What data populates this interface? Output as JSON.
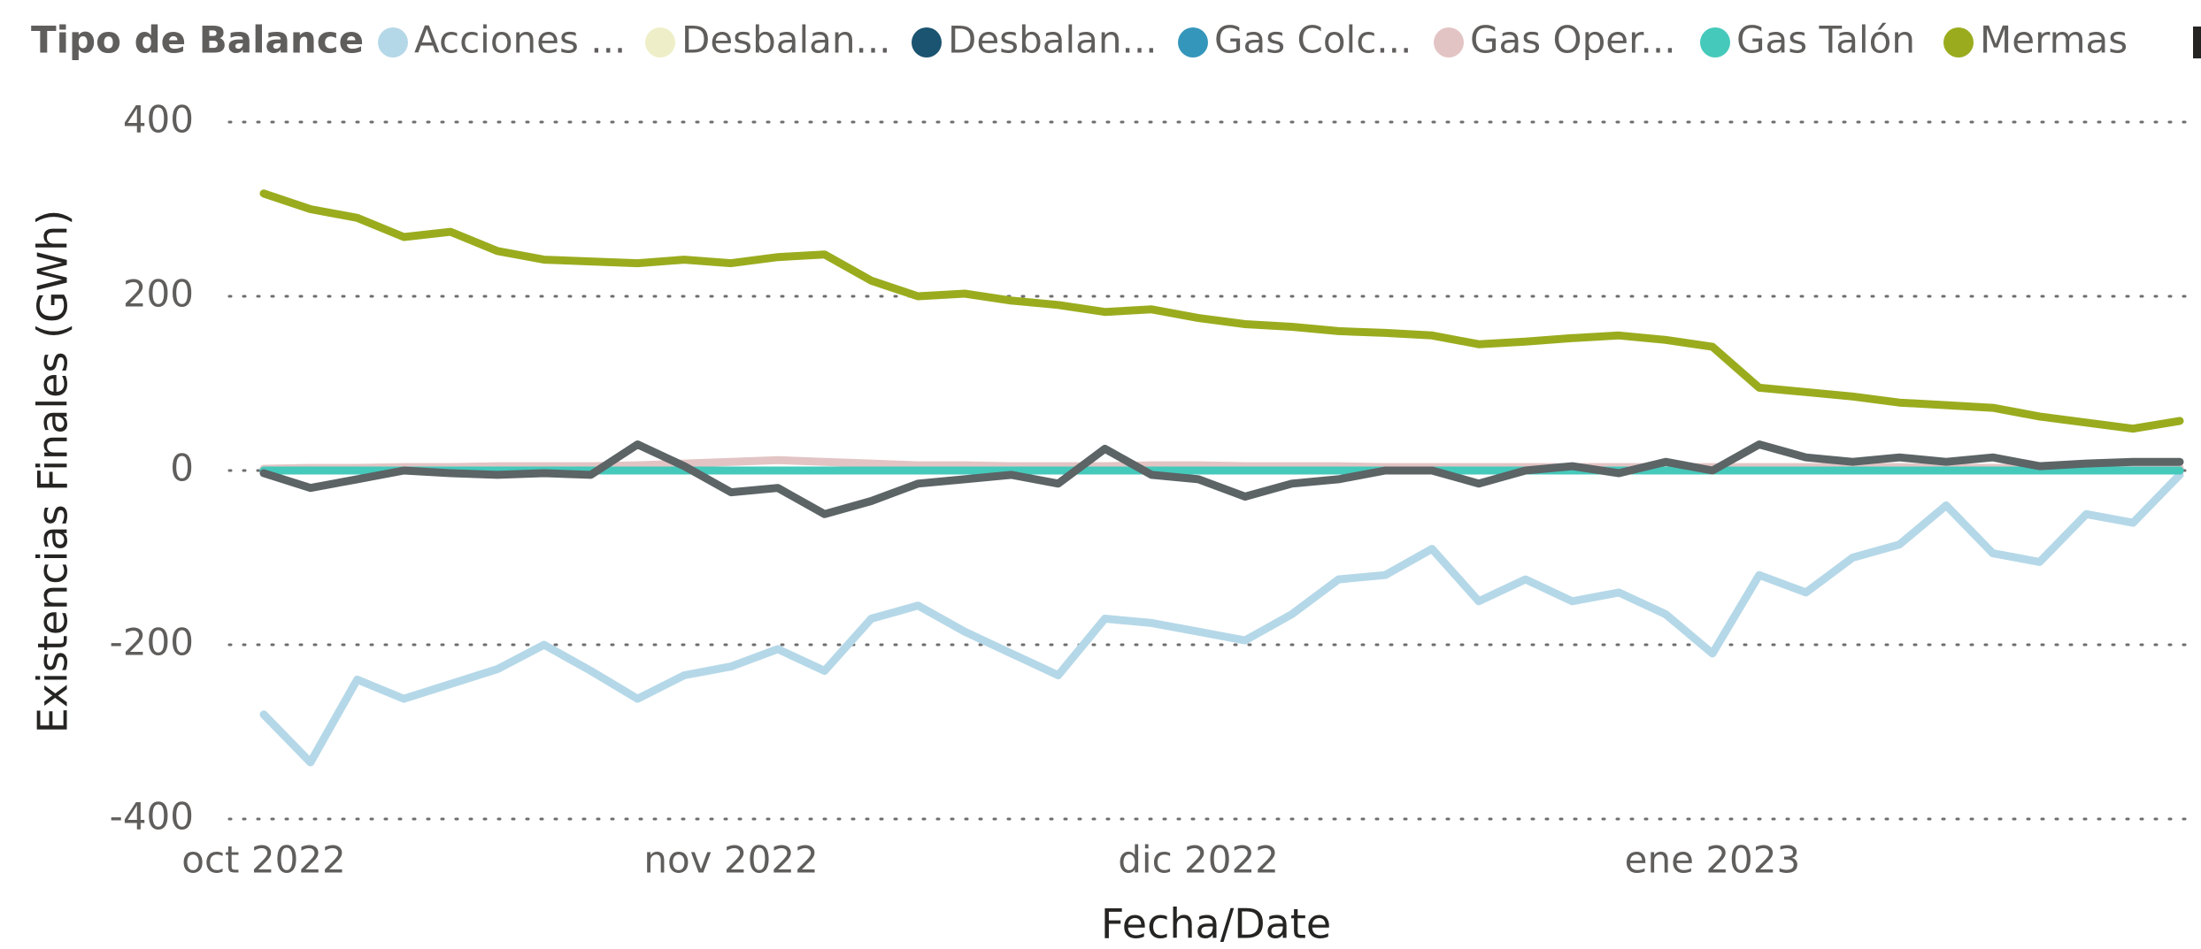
{
  "chart_data": {
    "type": "line",
    "legend_title": "Tipo de Balance",
    "ylabel": "Existencias Finales (GWh)",
    "xlabel": "Fecha/Date",
    "categories": [
      "oct 2022",
      null,
      null,
      null,
      null,
      null,
      null,
      null,
      null,
      null,
      "nov 2022",
      null,
      null,
      null,
      null,
      null,
      null,
      null,
      null,
      null,
      "dic 2022",
      null,
      null,
      null,
      null,
      null,
      null,
      null,
      null,
      null,
      null,
      "ene 2023",
      null,
      null,
      null,
      null,
      null,
      null,
      null,
      null,
      null,
      null
    ],
    "ylim": [
      -400,
      400
    ],
    "yticks": [
      -400,
      -200,
      0,
      200,
      400
    ],
    "grid": true,
    "series": [
      {
        "name": "Acciones ...",
        "color": "#b5d8e8",
        "values": [
          -280,
          -335,
          -240,
          -262,
          -245,
          -228,
          -200,
          -230,
          -262,
          -235,
          -225,
          -205,
          -230,
          -170,
          -155,
          -185,
          -210,
          -235,
          -170,
          -175,
          -185,
          -195,
          -165,
          -125,
          -120,
          -90,
          -150,
          -125,
          -150,
          -140,
          -165,
          -210,
          -120,
          -140,
          -100,
          -85,
          -40,
          -95,
          -105,
          -50,
          -60,
          -5
        ]
      },
      {
        "name": "Desbalan...",
        "color": "#eeefc8",
        "values": [
          0,
          0,
          0,
          0,
          0,
          0,
          0,
          0,
          0,
          0,
          0,
          0,
          0,
          0,
          0,
          0,
          0,
          0,
          0,
          0,
          0,
          0,
          0,
          0,
          0,
          0,
          0,
          0,
          0,
          0,
          0,
          0,
          0,
          0,
          0,
          0,
          0,
          0,
          0,
          0,
          0,
          0
        ]
      },
      {
        "name": "Desbalan...",
        "color": "#1b5470",
        "values": [
          0,
          0,
          0,
          0,
          0,
          0,
          0,
          0,
          0,
          0,
          0,
          0,
          0,
          0,
          0,
          0,
          0,
          0,
          0,
          0,
          0,
          0,
          0,
          0,
          0,
          0,
          0,
          0,
          0,
          0,
          0,
          0,
          0,
          0,
          0,
          0,
          0,
          0,
          0,
          0,
          0,
          0
        ]
      },
      {
        "name": "Gas Colc...",
        "color": "#3596bb",
        "values": [
          0,
          0,
          0,
          0,
          0,
          0,
          0,
          0,
          0,
          0,
          0,
          0,
          0,
          0,
          0,
          0,
          0,
          0,
          0,
          0,
          0,
          0,
          0,
          0,
          0,
          0,
          0,
          0,
          0,
          0,
          0,
          0,
          0,
          0,
          0,
          0,
          0,
          0,
          0,
          0,
          0,
          0
        ]
      },
      {
        "name": "Gas Oper...",
        "color": "#e3c4c4",
        "values": [
          2,
          3,
          3,
          4,
          4,
          5,
          5,
          5,
          6,
          8,
          10,
          12,
          10,
          8,
          6,
          6,
          5,
          5,
          5,
          6,
          6,
          5,
          5,
          5,
          4,
          4,
          4,
          4,
          4,
          4,
          4,
          4,
          4,
          4,
          4,
          4,
          3,
          3,
          3,
          3,
          3,
          3
        ]
      },
      {
        "name": "Gas Talón",
        "color": "#45c9bb",
        "values": [
          0,
          0,
          0,
          0,
          0,
          0,
          0,
          0,
          0,
          0,
          0,
          0,
          0,
          0,
          0,
          0,
          0,
          0,
          0,
          0,
          0,
          0,
          0,
          0,
          0,
          0,
          0,
          0,
          0,
          0,
          0,
          0,
          0,
          0,
          0,
          0,
          0,
          0,
          0,
          0,
          0,
          0
        ]
      },
      {
        "name": "Mermas",
        "color": "#9aac1e",
        "values": [
          318,
          300,
          290,
          268,
          274,
          252,
          242,
          240,
          238,
          242,
          238,
          245,
          248,
          218,
          200,
          203,
          195,
          190,
          182,
          185,
          175,
          168,
          165,
          160,
          158,
          155,
          145,
          148,
          152,
          155,
          150,
          142,
          95,
          90,
          85,
          78,
          75,
          72,
          62,
          55,
          48,
          57
        ]
      },
      {
        "color": "#5c6466",
        "values": [
          -3,
          -20,
          -10,
          0,
          -3,
          -5,
          -3,
          -5,
          30,
          5,
          -25,
          -20,
          -50,
          -35,
          -15,
          -10,
          -5,
          -15,
          25,
          -5,
          -10,
          -30,
          -15,
          -10,
          0,
          0,
          -15,
          0,
          5,
          -3,
          10,
          0,
          30,
          15,
          10,
          15,
          10,
          15,
          5,
          8,
          10,
          10
        ]
      }
    ]
  }
}
